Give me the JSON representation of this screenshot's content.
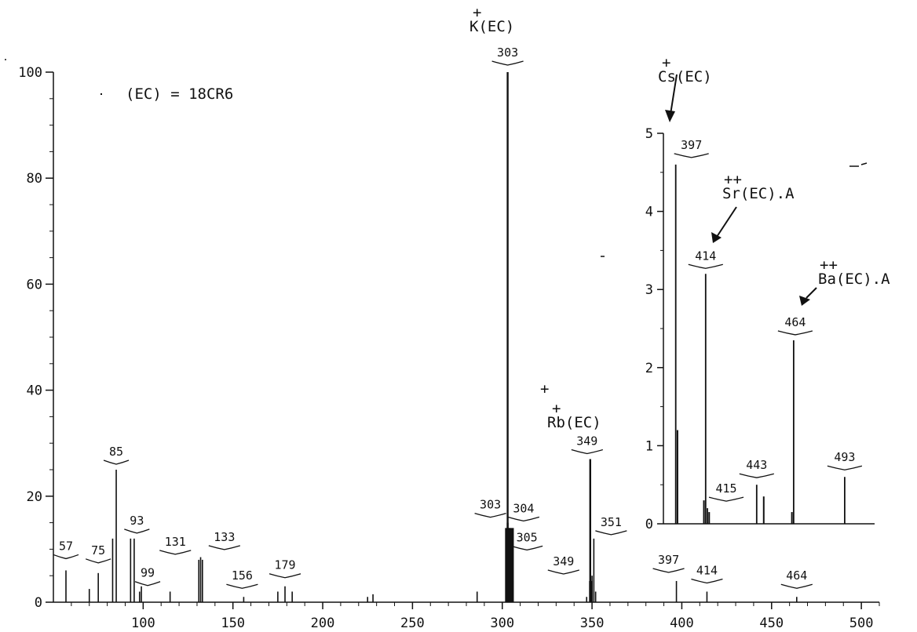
{
  "chart_data": [
    {
      "type": "bar",
      "title": "",
      "xlabel": "",
      "ylabel": "",
      "xlim": [
        50,
        510
      ],
      "ylim": [
        0,
        100
      ],
      "x_ticks": [
        "100",
        "150",
        "200",
        "250",
        "300",
        "350",
        "400",
        "450",
        "500"
      ],
      "y_ticks": [
        "0",
        "20",
        "40",
        "60",
        "80",
        "100"
      ],
      "grid": false,
      "annotation": "(EC) = 18CR6",
      "species_labels": {
        "k": "K(EC)",
        "rb": "Rb(EC)"
      },
      "peaks": [
        {
          "x": 57,
          "y": 6,
          "label": "57"
        },
        {
          "x": 75,
          "y": 5.5,
          "label": "75"
        },
        {
          "x": 85,
          "y": 25,
          "label": "85"
        },
        {
          "x": 93,
          "y": 12,
          "label": "93"
        },
        {
          "x": 99,
          "y": 3,
          "label": "99"
        },
        {
          "x": 131,
          "y": 8,
          "label": "131"
        },
        {
          "x": 133,
          "y": 8,
          "label": "133"
        },
        {
          "x": 156,
          "y": 1,
          "label": "156"
        },
        {
          "x": 179,
          "y": 3,
          "label": "179"
        },
        {
          "x": 303,
          "y": 100,
          "label": "303"
        },
        {
          "x": 303,
          "y": 15,
          "label": "303"
        },
        {
          "x": 304,
          "y": 14,
          "label": "304"
        },
        {
          "x": 305,
          "y": 10,
          "label": "305"
        },
        {
          "x": 349,
          "y": 27,
          "label": "349"
        },
        {
          "x": 349,
          "y": 4,
          "label": "349"
        },
        {
          "x": 351,
          "y": 12,
          "label": "351"
        },
        {
          "x": 397,
          "y": 4,
          "label": "397"
        },
        {
          "x": 414,
          "y": 2,
          "label": "414"
        },
        {
          "x": 464,
          "y": 1,
          "label": "464"
        }
      ],
      "minor_peaks": [
        {
          "x": 70,
          "y": 2.5
        },
        {
          "x": 83,
          "y": 12
        },
        {
          "x": 95,
          "y": 12
        },
        {
          "x": 98,
          "y": 2
        },
        {
          "x": 115,
          "y": 2
        },
        {
          "x": 132,
          "y": 8.5
        },
        {
          "x": 175,
          "y": 2
        },
        {
          "x": 183,
          "y": 2
        },
        {
          "x": 225,
          "y": 1
        },
        {
          "x": 228,
          "y": 1.5
        },
        {
          "x": 286,
          "y": 2
        },
        {
          "x": 302,
          "y": 8
        },
        {
          "x": 306,
          "y": 4
        },
        {
          "x": 347,
          "y": 1
        },
        {
          "x": 350,
          "y": 5
        },
        {
          "x": 352,
          "y": 2
        }
      ]
    },
    {
      "type": "bar",
      "title": "",
      "xlabel": "",
      "ylabel": "",
      "xlim": [
        390,
        510
      ],
      "ylim": [
        0,
        5
      ],
      "y_ticks": [
        "0",
        "1",
        "2",
        "3",
        "4",
        "5"
      ],
      "species_labels": {
        "cs": "Cs(EC)",
        "sr": "Sr(EC).A",
        "ba": "Ba(EC).A"
      },
      "peaks": [
        {
          "x": 397,
          "y": 4.6,
          "label": "397"
        },
        {
          "x": 414,
          "y": 3.2,
          "label": "414"
        },
        {
          "x": 415,
          "y": 0.2,
          "label": "415"
        },
        {
          "x": 443,
          "y": 0.5,
          "label": "443"
        },
        {
          "x": 464,
          "y": 2.35,
          "label": "464"
        },
        {
          "x": 493,
          "y": 0.6,
          "label": "493"
        }
      ],
      "minor_peaks": [
        {
          "x": 398,
          "y": 1.2
        },
        {
          "x": 413,
          "y": 0.3
        },
        {
          "x": 416,
          "y": 0.15
        },
        {
          "x": 447,
          "y": 0.35
        },
        {
          "x": 463,
          "y": 0.15
        }
      ]
    }
  ]
}
